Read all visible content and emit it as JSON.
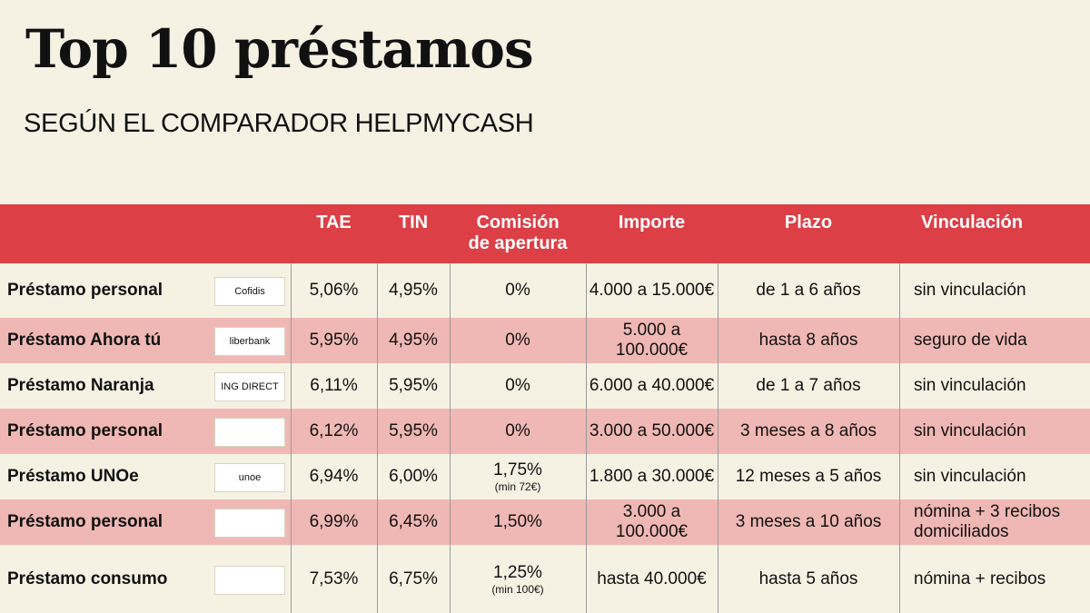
{
  "title": "Top 10 préstamos",
  "subtitle": "SEGÚN EL COMPARADOR HELPMYCASH",
  "header": {
    "tae": "TAE",
    "tin": "TIN",
    "comision_1": "Comisión",
    "comision_2": "de apertura",
    "importe": "Importe",
    "plazo": "Plazo",
    "vinculacion": "Vinculación"
  },
  "rows": [
    {
      "name": "Préstamo personal",
      "logo": "Cofidis",
      "tae": "5,06%",
      "tin": "4,95%",
      "comision": "0%",
      "comision_min": "",
      "importe": "4.000 a 15.000€",
      "plazo": "de 1 a 6 años",
      "vinculacion": "sin vinculación"
    },
    {
      "name": "Préstamo Ahora tú",
      "logo": "liberbank",
      "tae": "5,95%",
      "tin": "4,95%",
      "comision": "0%",
      "comision_min": "",
      "importe": "5.000 a 100.000€",
      "plazo": "hasta 8 años",
      "vinculacion": "seguro de vida"
    },
    {
      "name": "Préstamo Naranja",
      "logo": "ING DIRECT",
      "tae": "6,11%",
      "tin": "5,95%",
      "comision": "0%",
      "comision_min": "",
      "importe": "6.000 a 40.000€",
      "plazo": "de 1 a 7 años",
      "vinculacion": "sin vinculación"
    },
    {
      "name": "Préstamo personal",
      "logo": "",
      "tae": "6,12%",
      "tin": "5,95%",
      "comision": "0%",
      "comision_min": "",
      "importe": "3.000 a 50.000€",
      "plazo": "3 meses a 8 años",
      "vinculacion": "sin vinculación"
    },
    {
      "name": "Préstamo UNOe",
      "logo": "unoe",
      "tae": "6,94%",
      "tin": "6,00%",
      "comision": "1,75%",
      "comision_min": "(min 72€)",
      "importe": "1.800 a 30.000€",
      "plazo": "12 meses a 5 años",
      "vinculacion": "sin vinculación"
    },
    {
      "name": "Préstamo personal",
      "logo": "",
      "tae": "6,99%",
      "tin": "6,45%",
      "comision": "1,50%",
      "comision_min": "",
      "importe": "3.000 a 100.000€",
      "plazo": "3 meses a 10 años",
      "vinculacion": "nómina + 3 recibos domiciliados"
    },
    {
      "name": "Préstamo consumo",
      "logo": "",
      "tae": "7,53%",
      "tin": "6,75%",
      "comision": "1,25%",
      "comision_min": "(min 100€)",
      "importe": "hasta 40.000€",
      "plazo": "hasta 5 años",
      "vinculacion": "nómina  + recibos"
    }
  ]
}
